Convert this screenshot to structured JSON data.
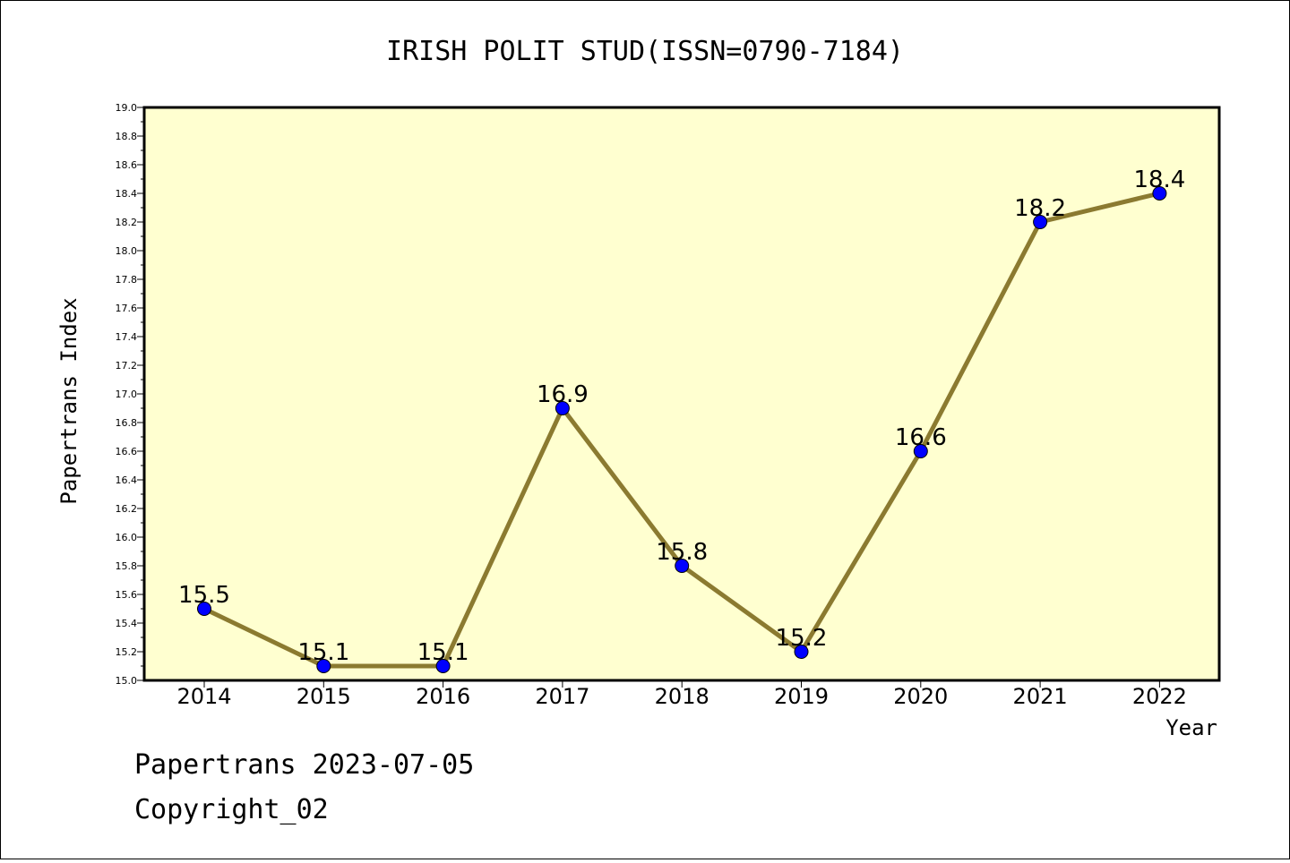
{
  "chart_data": {
    "type": "line",
    "title": "IRISH POLIT STUD(ISSN=0790-7184)",
    "xlabel": "Year",
    "ylabel": "Papertrans Index",
    "categories": [
      "2014",
      "2015",
      "2016",
      "2017",
      "2018",
      "2019",
      "2020",
      "2021",
      "2022"
    ],
    "series": [
      {
        "values": [
          15.5,
          15.1,
          15.1,
          16.9,
          15.8,
          15.2,
          16.6,
          18.2,
          18.4
        ],
        "labels": [
          "15.5",
          "15.1",
          "15.1",
          "16.9",
          "15.8",
          "15.2",
          "16.6",
          "18.2",
          "18.4"
        ]
      }
    ],
    "ylim": [
      15.0,
      19.0
    ],
    "ytick_step": 0.2,
    "yticks": [
      "15.0",
      "15.2",
      "15.4",
      "15.6",
      "15.8",
      "16.0",
      "16.2",
      "16.4",
      "16.6",
      "16.8",
      "17.0",
      "17.2",
      "17.4",
      "17.6",
      "17.8",
      "18.0",
      "18.2",
      "18.4",
      "18.6",
      "18.8",
      "19.0"
    ],
    "grid": false,
    "colors": {
      "plot_background": "#ffffd0",
      "line": "#8b7a30",
      "marker": "#0000ff"
    }
  },
  "footer": {
    "line1": "Papertrans 2023-07-05",
    "line2": "Copyright_02"
  }
}
